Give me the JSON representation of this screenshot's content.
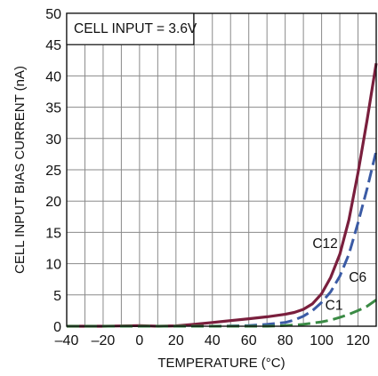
{
  "chart_data": {
    "type": "line",
    "title": "",
    "xlabel": "TEMPERATURE (°C)",
    "ylabel": "CELL INPUT BIAS CURRENT (nA)",
    "xlim": [
      -40,
      130
    ],
    "ylim": [
      0,
      50
    ],
    "x_ticks": [
      -40,
      -20,
      0,
      20,
      40,
      60,
      80,
      100,
      120
    ],
    "y_ticks": [
      0,
      5,
      10,
      15,
      20,
      25,
      30,
      35,
      40,
      45,
      50
    ],
    "x_tick_labels": [
      "–40",
      "–20",
      "0",
      "20",
      "40",
      "60",
      "80",
      "100",
      "120"
    ],
    "y_tick_labels": [
      "0",
      "5",
      "10",
      "15",
      "20",
      "25",
      "30",
      "35",
      "40",
      "45",
      "50"
    ],
    "grid": true,
    "annotation": "CELL INPUT = 3.6V",
    "series": [
      {
        "name": "C12",
        "color": "#7a1f3d",
        "style": "solid",
        "x": [
          -40,
          -20,
          0,
          10,
          20,
          30,
          40,
          50,
          60,
          70,
          80,
          85,
          90,
          95,
          100,
          105,
          110,
          115,
          120,
          125,
          130
        ],
        "y": [
          0,
          0,
          0.1,
          0,
          0.05,
          0.3,
          0.6,
          0.9,
          1.2,
          1.5,
          1.9,
          2.2,
          2.7,
          3.6,
          5.2,
          7.8,
          11.5,
          17,
          24.5,
          33,
          42
        ]
      },
      {
        "name": "C6",
        "color": "#3b5ba5",
        "style": "dashed",
        "x": [
          -40,
          0,
          40,
          60,
          70,
          80,
          85,
          90,
          95,
          100,
          105,
          110,
          115,
          120,
          125,
          130
        ],
        "y": [
          0,
          0,
          0,
          0.1,
          0.3,
          0.6,
          1.0,
          1.6,
          2.5,
          3.8,
          5.5,
          8.0,
          11.5,
          16.5,
          22,
          28
        ]
      },
      {
        "name": "C1",
        "color": "#3a8a44",
        "style": "dashed",
        "x": [
          -40,
          0,
          40,
          70,
          80,
          90,
          100,
          105,
          110,
          115,
          120,
          125,
          130
        ],
        "y": [
          0,
          0,
          0,
          0,
          0.1,
          0.3,
          0.7,
          1.0,
          1.4,
          1.9,
          2.5,
          3.2,
          4.2
        ]
      }
    ]
  }
}
